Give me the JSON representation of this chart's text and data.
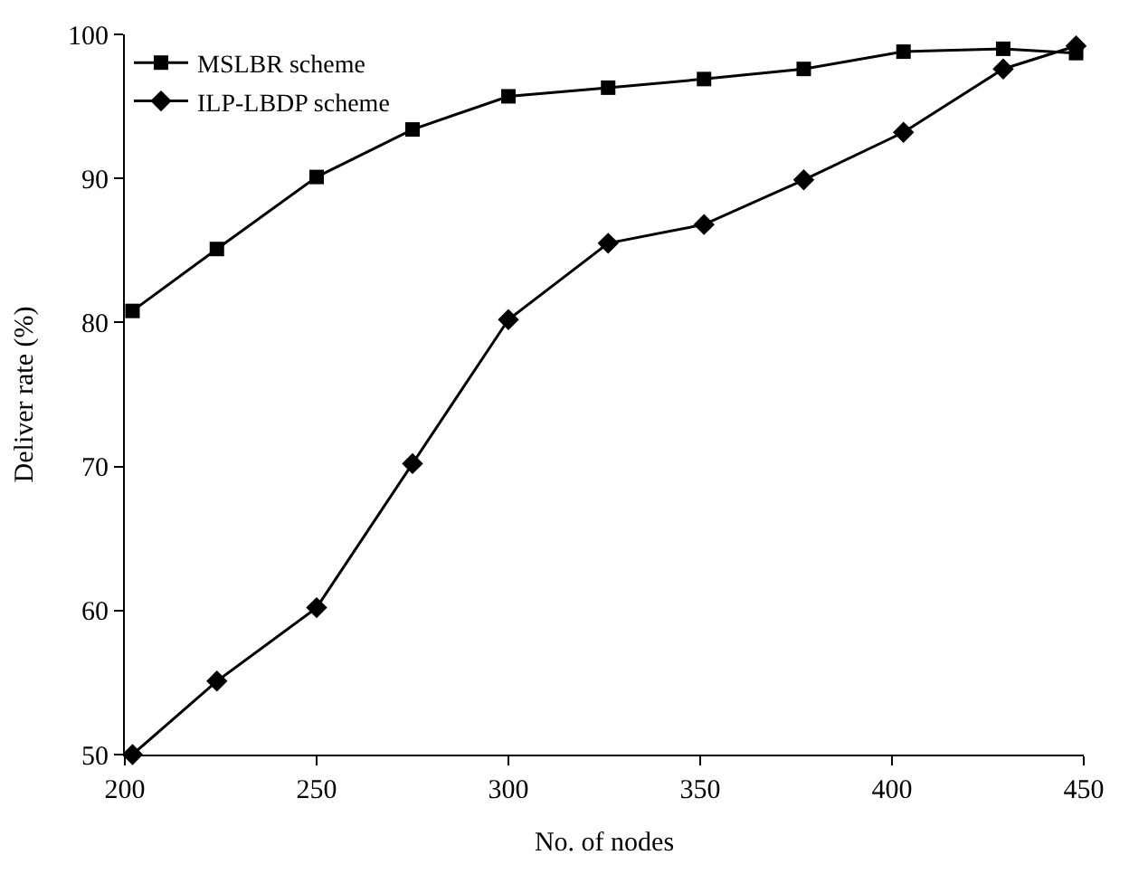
{
  "chart_data": {
    "type": "line",
    "xlabel": "No. of nodes",
    "ylabel": "Deliver rate (%)",
    "xlim": [
      200,
      450
    ],
    "xticks": [
      200,
      250,
      300,
      350,
      400,
      450
    ],
    "ylim": [
      50,
      100
    ],
    "yticks": [
      50,
      60,
      70,
      80,
      90,
      100
    ],
    "legend": "top left",
    "line_style": "solid",
    "series": [
      {
        "name": "MSLBR scheme",
        "color": "#000000",
        "marker": "square",
        "x": [
          202,
          224,
          250,
          275,
          300,
          326,
          351,
          377,
          403,
          429,
          448
        ],
        "values": [
          80.8,
          85.1,
          90.1,
          93.4,
          95.7,
          96.3,
          96.9,
          97.6,
          98.8,
          99.0,
          98.7
        ]
      },
      {
        "name": "ILP-LBDP scheme",
        "color": "#000000",
        "marker": "diamond",
        "x": [
          202,
          224,
          250,
          275,
          300,
          326,
          351,
          377,
          403,
          429,
          448
        ],
        "values": [
          50.0,
          55.1,
          60.2,
          70.2,
          80.2,
          85.5,
          86.8,
          89.9,
          93.2,
          97.6,
          99.2
        ]
      }
    ]
  }
}
